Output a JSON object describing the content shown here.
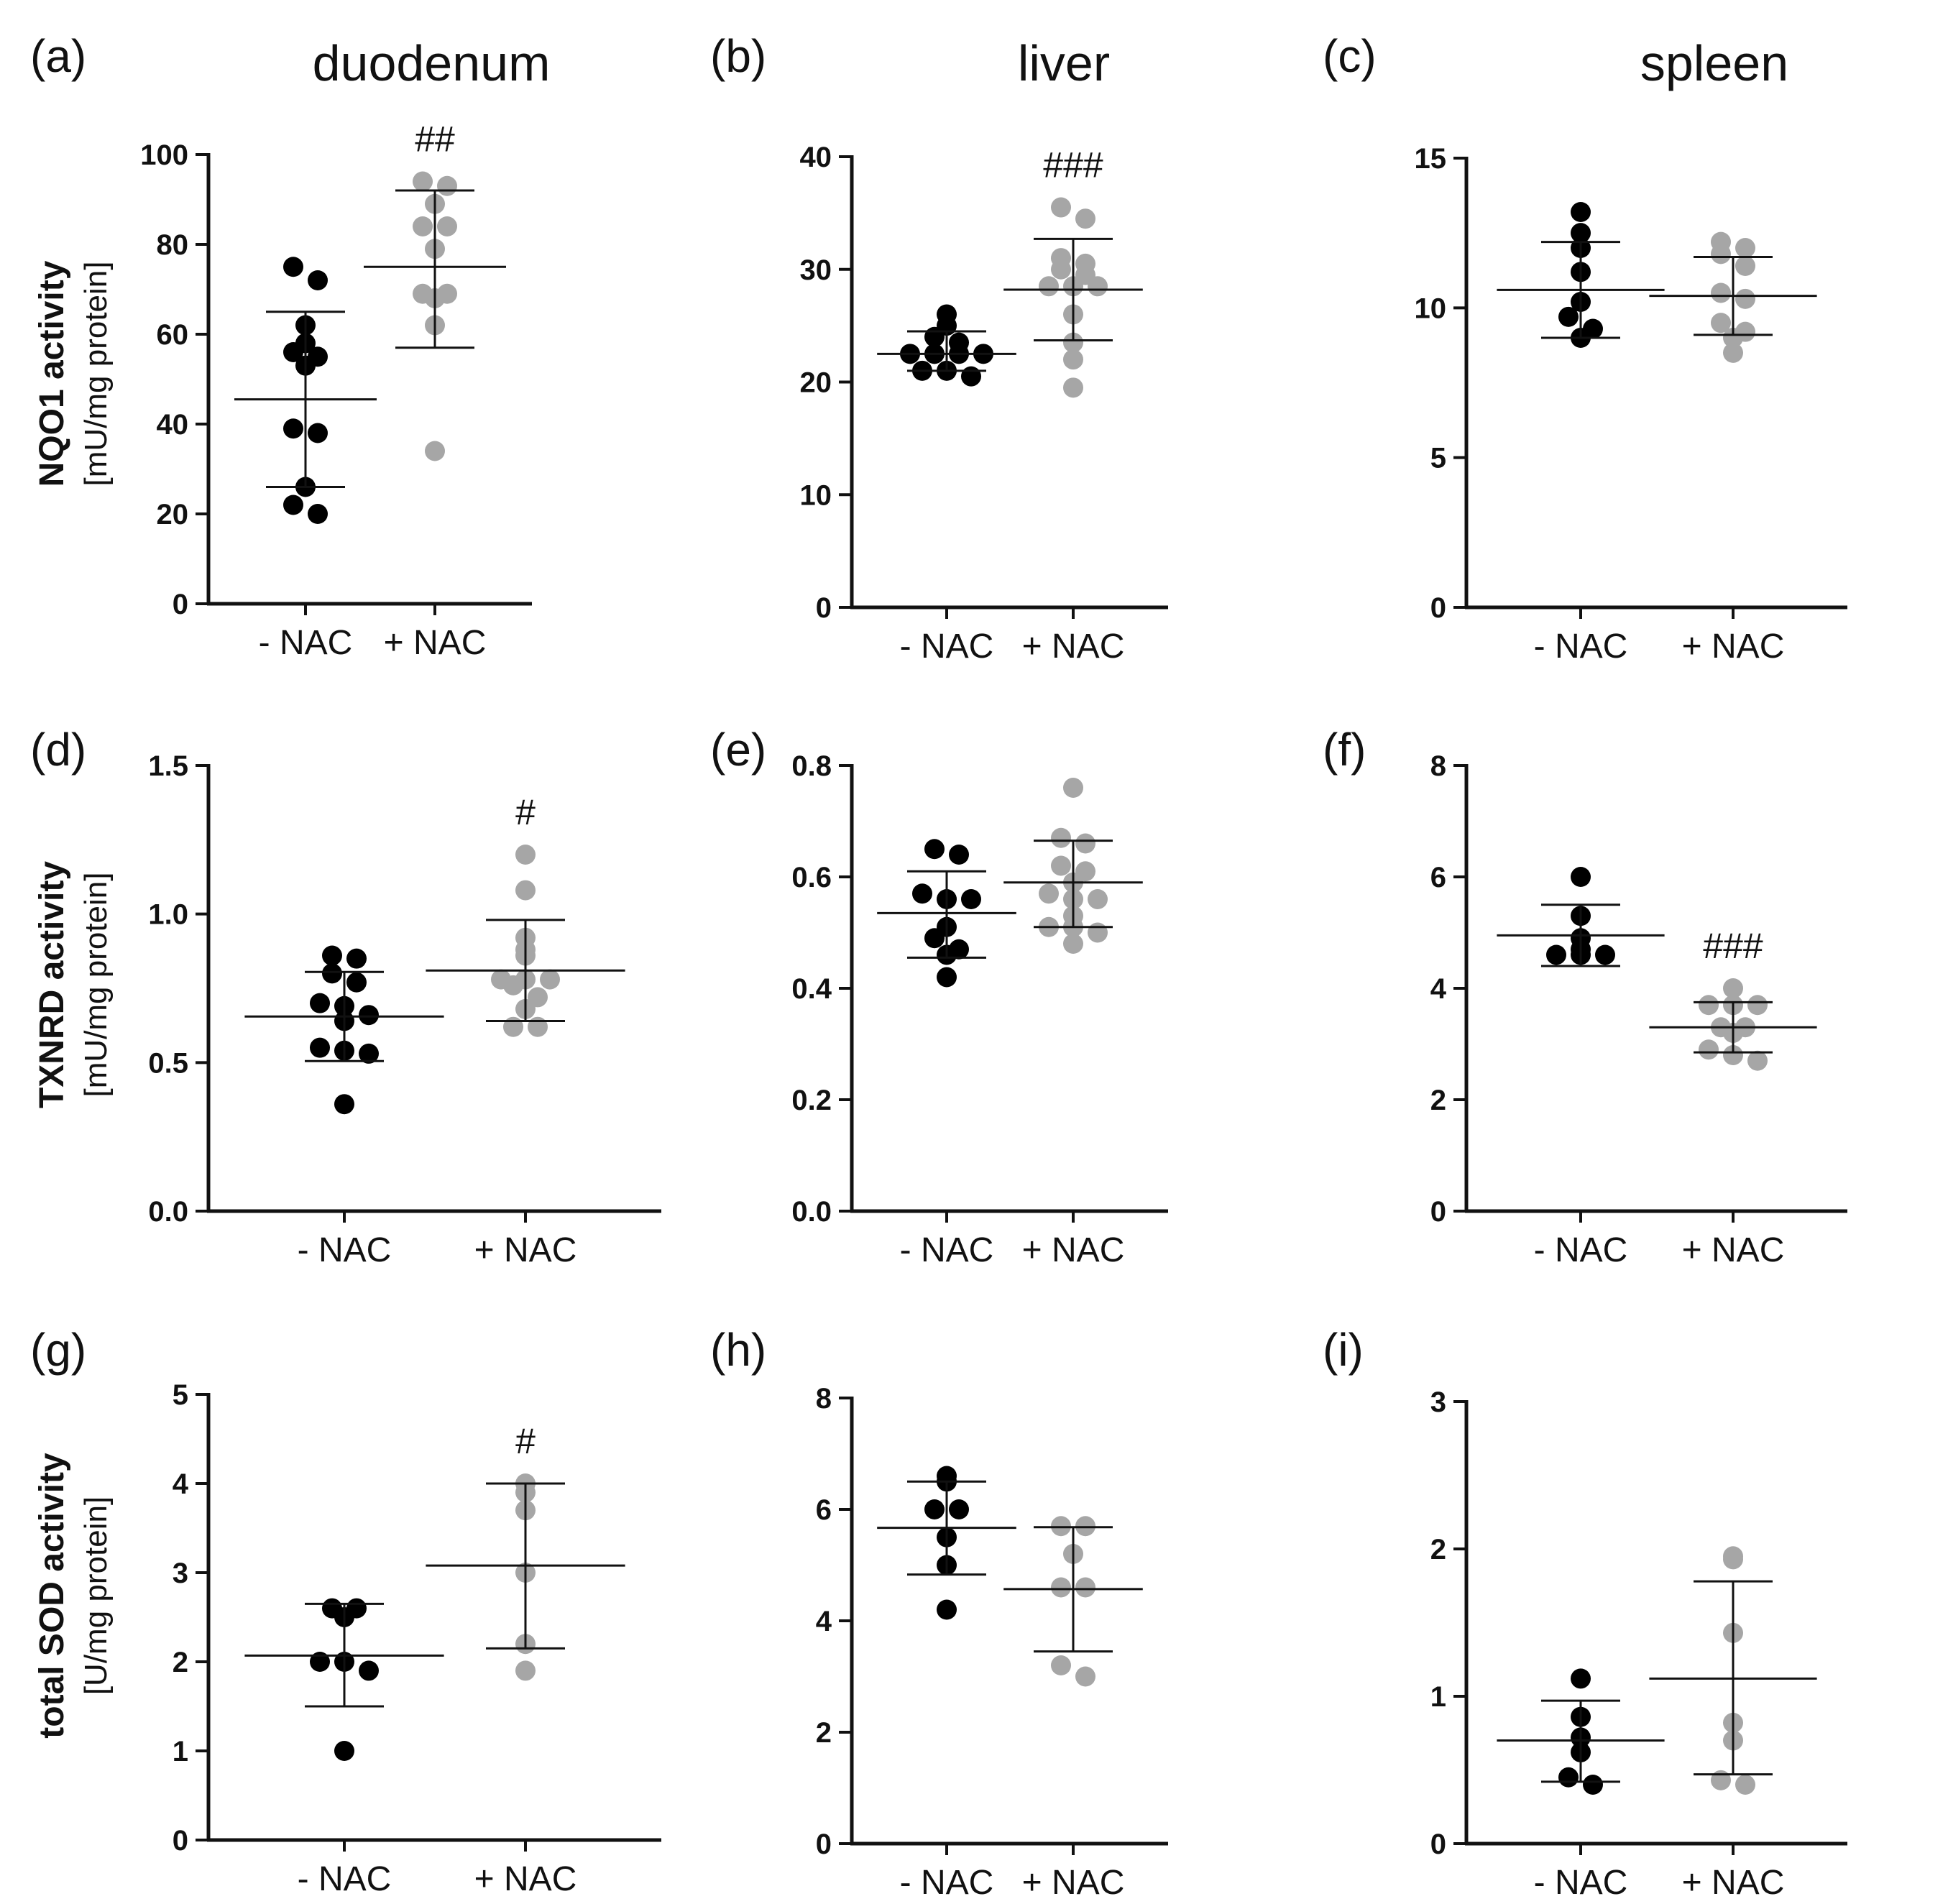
{
  "figure": {
    "column_titles": [
      "duodenum",
      "liver",
      "spleen"
    ],
    "row_ylabels": [
      {
        "measure": "NQO1 activity",
        "unit": "[mU/mg protein]"
      },
      {
        "measure": "TXNRD activity",
        "unit": "[mU/mg protein]"
      },
      {
        "measure": "total SOD activity",
        "unit": "[U/mg protein]"
      }
    ],
    "colors": {
      "minus": "#000000",
      "plus": "#a6a6a6",
      "axis": "#111111"
    }
  },
  "chart_data": [
    {
      "panel": "(a)",
      "type": "scatter",
      "tissue": "duodenum",
      "ylabel": "NQO1 activity [mU/mg protein]",
      "categories": [
        "- NAC",
        "+ NAC"
      ],
      "ylim": [
        0,
        100
      ],
      "yticks": [
        0,
        20,
        40,
        60,
        80,
        100
      ],
      "series": [
        {
          "name": "- NAC",
          "points": [
            75,
            72,
            62,
            58,
            56,
            55,
            53,
            39,
            38,
            26,
            22,
            20
          ],
          "mean": 45.5,
          "sd_low": 26,
          "sd_high": 65
        },
        {
          "name": "+ NAC",
          "points": [
            94,
            93,
            89,
            84,
            84,
            79,
            69,
            69,
            68,
            62,
            34
          ],
          "mean": 75,
          "sd_low": 57,
          "sd_high": 92
        }
      ],
      "annotation": "##"
    },
    {
      "panel": "(b)",
      "type": "scatter",
      "tissue": "liver",
      "ylabel": "NQO1 activity [mU/mg protein]",
      "categories": [
        "- NAC",
        "+ NAC"
      ],
      "ylim": [
        0,
        40
      ],
      "yticks": [
        0,
        10,
        20,
        30,
        40
      ],
      "series": [
        {
          "name": "- NAC",
          "points": [
            26,
            25,
            24,
            23.5,
            22.5,
            22.5,
            22.5,
            22.5,
            21,
            21,
            20.5
          ],
          "mean": 22.5,
          "sd_low": 21,
          "sd_high": 24.5
        },
        {
          "name": "+ NAC",
          "points": [
            35.5,
            34.5,
            31,
            30.5,
            30,
            29.5,
            28.5,
            28.5,
            28.5,
            26,
            23.5,
            22,
            19.5
          ],
          "mean": 28.2,
          "sd_low": 23.7,
          "sd_high": 32.7
        }
      ],
      "annotation": "###"
    },
    {
      "panel": "(c)",
      "type": "scatter",
      "tissue": "spleen",
      "ylabel": "NQO1 activity [mU/mg protein]",
      "categories": [
        "- NAC",
        "+ NAC"
      ],
      "ylim": [
        0,
        15
      ],
      "yticks": [
        0,
        5,
        10,
        15
      ],
      "series": [
        {
          "name": "- NAC",
          "points": [
            13.2,
            12.5,
            12,
            11.2,
            10.2,
            9.7,
            9.3,
            9
          ],
          "mean": 10.6,
          "sd_low": 9,
          "sd_high": 12.2
        },
        {
          "name": "+ NAC",
          "points": [
            12.2,
            12,
            11.8,
            11.4,
            10.5,
            10.3,
            9.5,
            9.2,
            9,
            8.5
          ],
          "mean": 10.4,
          "sd_low": 9.1,
          "sd_high": 11.7
        }
      ],
      "annotation": ""
    },
    {
      "panel": "(d)",
      "type": "scatter",
      "tissue": "duodenum",
      "ylabel": "TXNRD activity [mU/mg protein]",
      "categories": [
        "- NAC",
        "+ NAC"
      ],
      "ylim": [
        0,
        1.5
      ],
      "yticks": [
        "0.0",
        "0.5",
        "1.0",
        "1.5"
      ],
      "series": [
        {
          "name": "- NAC",
          "points": [
            0.86,
            0.85,
            0.8,
            0.77,
            0.7,
            0.69,
            0.66,
            0.64,
            0.55,
            0.54,
            0.53,
            0.36
          ],
          "mean": 0.655,
          "sd_low": 0.505,
          "sd_high": 0.805
        },
        {
          "name": "+ NAC",
          "points": [
            1.2,
            1.08,
            0.92,
            0.88,
            0.86,
            0.78,
            0.78,
            0.78,
            0.76,
            0.72,
            0.68,
            0.62,
            0.62
          ],
          "mean": 0.81,
          "sd_low": 0.64,
          "sd_high": 0.98
        }
      ],
      "annotation": "#"
    },
    {
      "panel": "(e)",
      "type": "scatter",
      "tissue": "liver",
      "ylabel": "TXNRD activity [mU/mg protein]",
      "categories": [
        "- NAC",
        "+ NAC"
      ],
      "ylim": [
        0,
        0.8
      ],
      "yticks": [
        "0.0",
        "0.2",
        "0.4",
        "0.6",
        "0.8"
      ],
      "series": [
        {
          "name": "- NAC",
          "points": [
            0.65,
            0.64,
            0.57,
            0.56,
            0.56,
            0.51,
            0.49,
            0.47,
            0.46,
            0.42
          ],
          "mean": 0.535,
          "sd_low": 0.455,
          "sd_high": 0.61
        },
        {
          "name": "+ NAC",
          "points": [
            0.76,
            0.67,
            0.66,
            0.62,
            0.61,
            0.59,
            0.57,
            0.56,
            0.56,
            0.53,
            0.51,
            0.51,
            0.5,
            0.48
          ],
          "mean": 0.59,
          "sd_low": 0.51,
          "sd_high": 0.665
        }
      ],
      "annotation": ""
    },
    {
      "panel": "(f)",
      "type": "scatter",
      "tissue": "spleen",
      "ylabel": "TXNRD activity [mU/mg protein]",
      "categories": [
        "- NAC",
        "+ NAC"
      ],
      "ylim": [
        0,
        8
      ],
      "yticks": [
        0,
        2,
        4,
        6,
        8
      ],
      "series": [
        {
          "name": "- NAC",
          "points": [
            6.0,
            5.3,
            4.9,
            4.7,
            4.6,
            4.6,
            4.6
          ],
          "mean": 4.95,
          "sd_low": 4.4,
          "sd_high": 5.5
        },
        {
          "name": "+ NAC",
          "points": [
            4.0,
            3.7,
            3.7,
            3.7,
            3.3,
            3.3,
            3.2,
            2.9,
            2.8,
            2.7
          ],
          "mean": 3.3,
          "sd_low": 2.85,
          "sd_high": 3.75
        }
      ],
      "annotation": "###"
    },
    {
      "panel": "(g)",
      "type": "scatter",
      "tissue": "duodenum",
      "ylabel": "total SOD activity [U/mg protein]",
      "categories": [
        "- NAC",
        "+ NAC"
      ],
      "ylim": [
        0,
        5
      ],
      "yticks": [
        0,
        1,
        2,
        3,
        4,
        5
      ],
      "series": [
        {
          "name": "- NAC",
          "points": [
            2.6,
            2.6,
            2.5,
            2.0,
            2.0,
            1.9,
            1.0
          ],
          "mean": 2.07,
          "sd_low": 1.5,
          "sd_high": 2.65
        },
        {
          "name": "+ NAC",
          "points": [
            4.0,
            3.9,
            3.7,
            3.0,
            2.2,
            1.9
          ],
          "mean": 3.08,
          "sd_low": 2.15,
          "sd_high": 4.0
        }
      ],
      "annotation": "#"
    },
    {
      "panel": "(h)",
      "type": "scatter",
      "tissue": "liver",
      "ylabel": "total SOD activity [U/mg protein]",
      "categories": [
        "- NAC",
        "+ NAC"
      ],
      "ylim": [
        0,
        8
      ],
      "yticks": [
        0,
        2,
        4,
        6,
        8
      ],
      "series": [
        {
          "name": "- NAC",
          "points": [
            6.6,
            6.5,
            6.0,
            6.0,
            5.5,
            5.0,
            4.2
          ],
          "mean": 5.67,
          "sd_low": 4.83,
          "sd_high": 6.5
        },
        {
          "name": "+ NAC",
          "points": [
            5.7,
            5.7,
            5.2,
            4.6,
            4.6,
            3.2,
            3.0
          ],
          "mean": 4.57,
          "sd_low": 3.45,
          "sd_high": 5.68
        }
      ],
      "annotation": ""
    },
    {
      "panel": "(i)",
      "type": "scatter",
      "tissue": "spleen",
      "ylabel": "total SOD activity [U/mg protein]",
      "categories": [
        "- NAC",
        "+ NAC"
      ],
      "ylim": [
        0,
        3
      ],
      "yticks": [
        0,
        1,
        2,
        3
      ],
      "series": [
        {
          "name": "- NAC",
          "points": [
            1.12,
            0.86,
            0.72,
            0.62,
            0.45,
            0.4
          ],
          "mean": 0.7,
          "sd_low": 0.42,
          "sd_high": 0.97
        },
        {
          "name": "+ NAC",
          "points": [
            1.95,
            1.93,
            1.43,
            0.82,
            0.7,
            0.43,
            0.4
          ],
          "mean": 1.12,
          "sd_low": 0.47,
          "sd_high": 1.78
        }
      ],
      "annotation": ""
    }
  ]
}
